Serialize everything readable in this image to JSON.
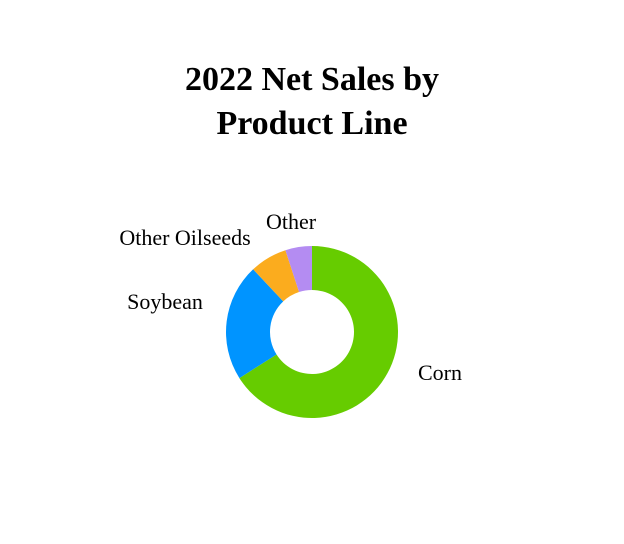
{
  "chart_data": {
    "type": "pie",
    "donut": true,
    "title_lines": [
      "2022 Net Sales by",
      "Product Line"
    ],
    "start": "top",
    "direction": "clockwise",
    "categories": [
      "Corn",
      "Soybean",
      "Other Oilseeds",
      "Other"
    ],
    "values": [
      66,
      22,
      7,
      5
    ],
    "unit": "%",
    "colors": [
      "#66cc00",
      "#0094ff",
      "#fbac1e",
      "#b48cf2"
    ],
    "legend": "none"
  }
}
